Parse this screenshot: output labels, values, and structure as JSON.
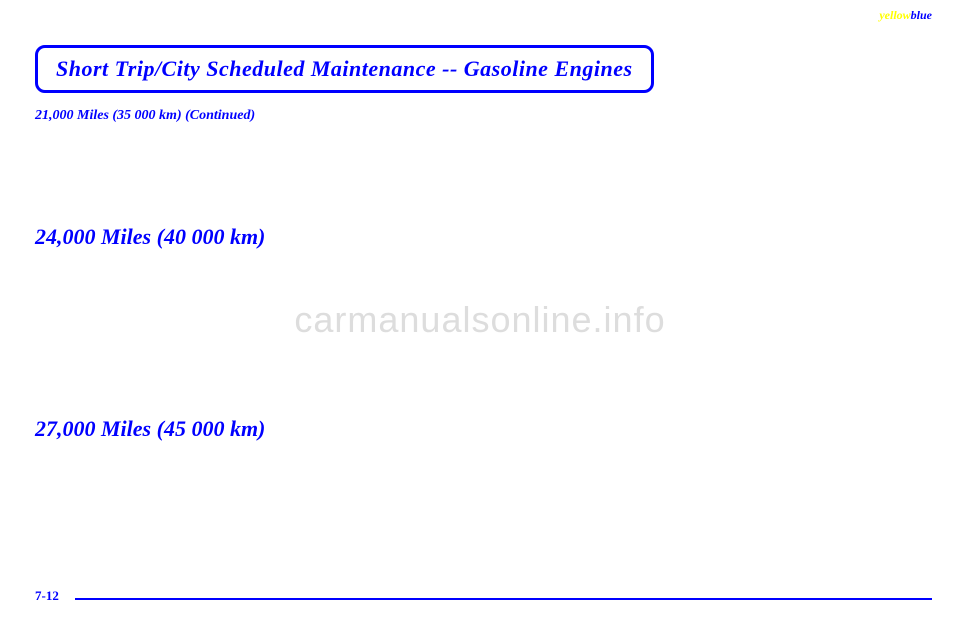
{
  "corner": {
    "yellow": "yellow",
    "blue": "blue"
  },
  "header": {
    "title": "Short Trip/City Scheduled Maintenance -- Gasoline Engines"
  },
  "continued": {
    "text": "21,000 Miles (35 000 km) (Continued)"
  },
  "sections": [
    {
      "heading": "24,000 Miles (40 000 km)"
    },
    {
      "heading": "27,000 Miles (45 000 km)"
    }
  ],
  "footer": {
    "page_number": "7-12"
  },
  "watermark": {
    "text": "carmanualsonline.info"
  }
}
